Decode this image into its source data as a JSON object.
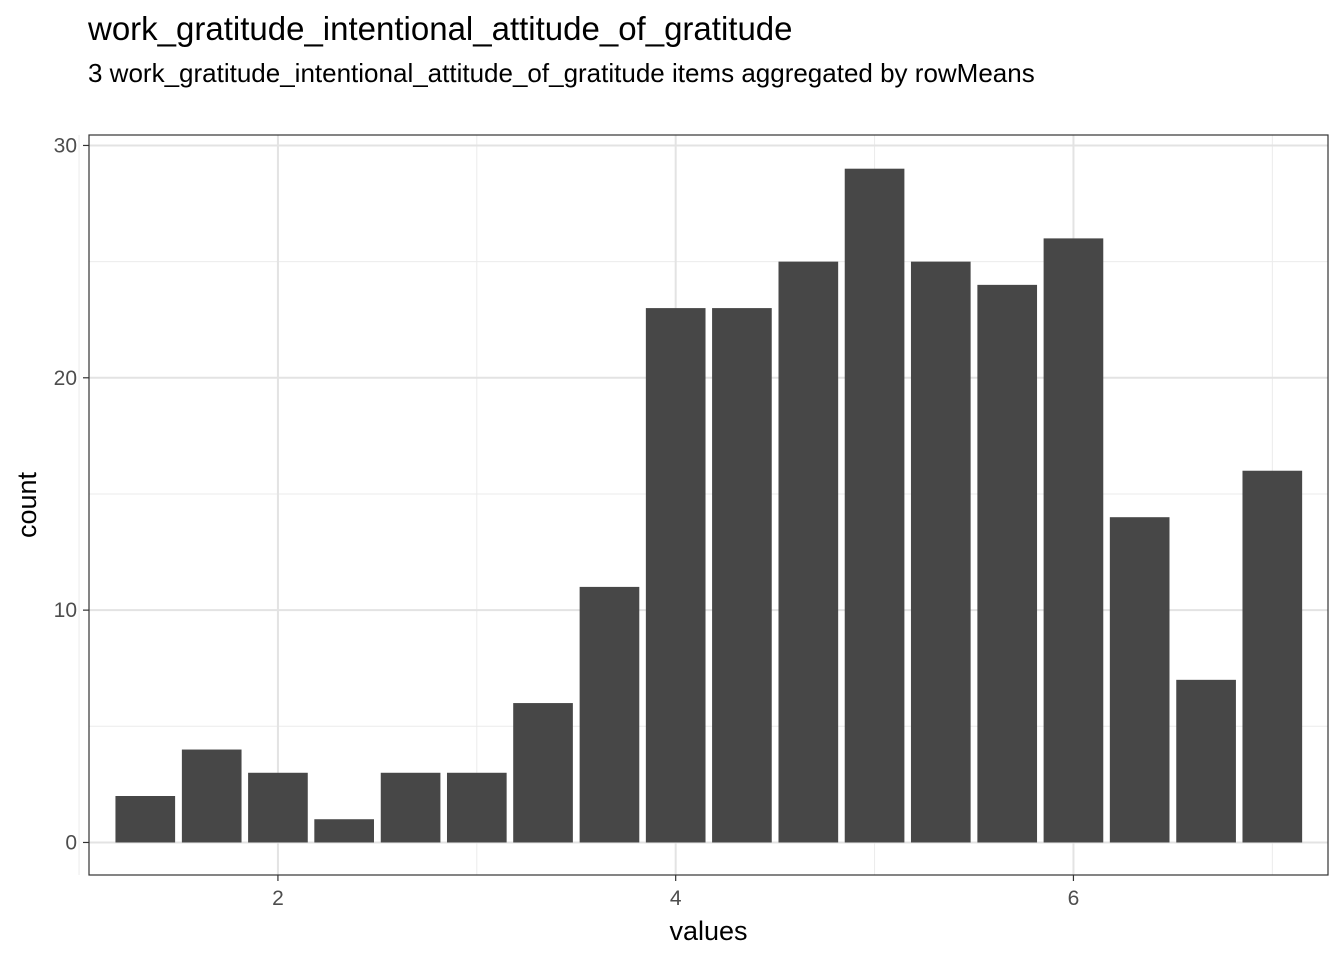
{
  "chart_data": {
    "type": "bar",
    "title": "work_gratitude_intentional_attitude_of_gratitude",
    "subtitle": "3 work_gratitude_intentional_attitude_of_gratitude items aggregated by rowMeans",
    "xlabel": "values",
    "ylabel": "count",
    "x": [
      1.333,
      1.667,
      2.0,
      2.333,
      2.667,
      3.0,
      3.333,
      3.667,
      4.0,
      4.333,
      4.667,
      5.0,
      5.333,
      5.667,
      6.0,
      6.333,
      6.667,
      7.0
    ],
    "values": [
      2,
      4,
      3,
      1,
      3,
      3,
      6,
      11,
      23,
      23,
      25,
      29,
      25,
      24,
      26,
      14,
      7,
      16
    ],
    "bar_width": 0.3,
    "xlim": [
      1.05,
      7.28
    ],
    "ylim": [
      -1.4,
      30.45
    ],
    "x_ticks": [
      2,
      4,
      6
    ],
    "y_ticks": [
      0,
      10,
      20,
      30
    ],
    "x_minor_ticks": [
      1,
      3,
      5,
      7
    ],
    "y_minor_ticks": [
      5,
      15,
      25
    ],
    "grid": true,
    "bar_color": "#474747"
  }
}
